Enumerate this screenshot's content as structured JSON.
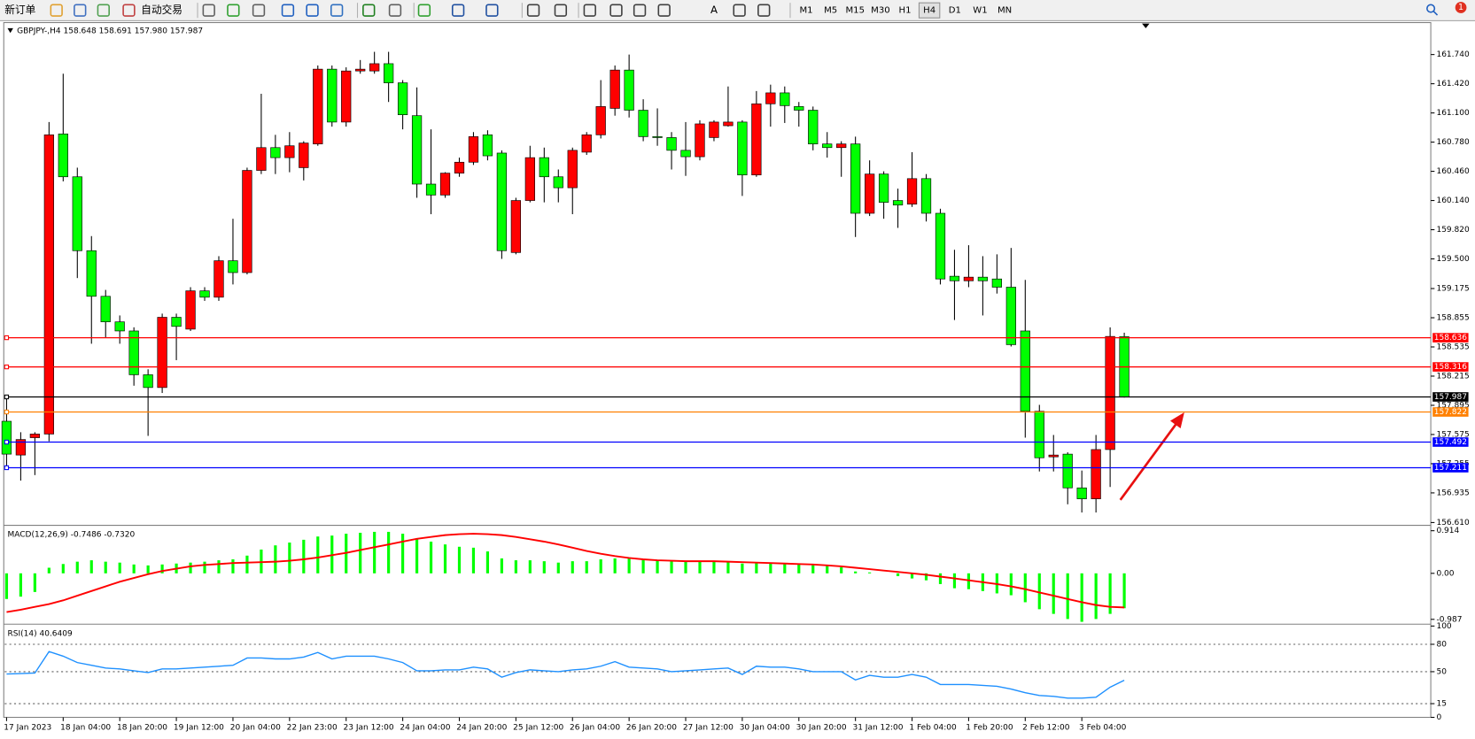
{
  "toolbar": {
    "new_order": "新订单",
    "auto_trading": "自动交易",
    "text_tool": "A",
    "notification_count": "1",
    "timeframes": [
      {
        "label": "M1"
      },
      {
        "label": "M5"
      },
      {
        "label": "M15"
      },
      {
        "label": "M30"
      },
      {
        "label": "H1"
      },
      {
        "label": "H4",
        "active": true
      },
      {
        "label": "D1"
      },
      {
        "label": "W1"
      },
      {
        "label": "MN"
      }
    ]
  },
  "chart_data": [
    {
      "type": "candlestick",
      "title": "GBPJPY-,H4  158.648 158.691 157.980 157.987",
      "up_color": "#ff0000",
      "down_color": "#00ff00",
      "categories": [
        "17 Jan 2023",
        null,
        null,
        null,
        "18 Jan 04:00",
        null,
        null,
        null,
        "18 Jan 20:00",
        null,
        null,
        null,
        "19 Jan 12:00",
        null,
        null,
        null,
        "20 Jan 04:00",
        null,
        null,
        null,
        "22 Jan 23:00",
        null,
        null,
        null,
        "23 Jan 12:00",
        null,
        null,
        null,
        "24 Jan 04:00",
        null,
        null,
        null,
        "24 Jan 20:00",
        null,
        null,
        null,
        "25 Jan 12:00",
        null,
        null,
        null,
        "26 Jan 04:00",
        null,
        null,
        null,
        "26 Jan 20:00",
        null,
        null,
        null,
        "27 Jan 12:00",
        null,
        null,
        null,
        "30 Jan 04:00",
        null,
        null,
        null,
        "30 Jan 20:00",
        null,
        null,
        null,
        "31 Jan 12:00",
        null,
        null,
        null,
        "1 Feb 04:00",
        null,
        null,
        null,
        "1 Feb 20:00",
        null,
        null,
        null,
        "2 Feb 12:00",
        null,
        null,
        null,
        "3 Feb 04:00",
        null,
        null,
        null
      ],
      "open": [
        157.72,
        157.35,
        157.54,
        157.58,
        160.87,
        160.4,
        159.59,
        159.09,
        158.81,
        158.71,
        158.23,
        158.09,
        158.86,
        158.73,
        159.15,
        159.08,
        159.48,
        159.35,
        160.47,
        160.72,
        160.61,
        160.5,
        160.76,
        161.58,
        161.0,
        161.56,
        161.56,
        161.64,
        161.43,
        161.07,
        160.32,
        160.2,
        160.44,
        160.56,
        160.86,
        160.66,
        159.57,
        160.14,
        160.61,
        160.4,
        160.28,
        160.67,
        160.86,
        161.15,
        161.57,
        161.13,
        160.84,
        160.83,
        160.69,
        160.62,
        160.83,
        160.96,
        161.0,
        160.42,
        161.2,
        161.32,
        161.17,
        161.13,
        160.76,
        160.72,
        160.76,
        160.0,
        160.43,
        160.14,
        160.1,
        160.38,
        160.0,
        159.31,
        159.26,
        159.3,
        159.28,
        159.19,
        158.71,
        157.83,
        157.33,
        157.36,
        156.99,
        156.87,
        157.41,
        158.648
      ],
      "high": [
        158,
        157.6,
        157.6,
        161.0,
        161.53,
        160.5,
        159.75,
        159.16,
        158.88,
        158.75,
        158.29,
        158.9,
        158.9,
        159.19,
        159.19,
        159.53,
        159.94,
        160.5,
        161.31,
        160.86,
        160.89,
        160.79,
        161.62,
        161.62,
        161.6,
        161.68,
        161.77,
        161.77,
        161.46,
        161.38,
        160.92,
        160.45,
        160.61,
        160.89,
        160.91,
        160.69,
        160.17,
        160.74,
        160.72,
        160.48,
        160.72,
        160.89,
        161.46,
        161.62,
        161.74,
        161.25,
        161.15,
        160.89,
        161.0,
        161.02,
        161.02,
        161.39,
        161.02,
        161.34,
        161.41,
        161.39,
        161.22,
        161.17,
        160.89,
        160.79,
        160.84,
        160.58,
        160.46,
        160.27,
        160.67,
        160.43,
        160.05,
        159.6,
        159.65,
        159.53,
        159.55,
        159.62,
        159.27,
        157.9,
        157.57,
        157.38,
        157.18,
        157.57,
        158.75,
        158.691
      ],
      "low": [
        157.2,
        157.07,
        157.13,
        157.5,
        160.35,
        159.29,
        158.57,
        158.64,
        158.57,
        158.11,
        157.56,
        158.03,
        158.39,
        158.71,
        159.04,
        159.04,
        159.22,
        159.33,
        160.43,
        160.43,
        160.45,
        160.36,
        160.74,
        160.95,
        160.95,
        161.53,
        161.53,
        161.22,
        160.92,
        160.17,
        159.99,
        160.17,
        160.4,
        160.53,
        160.58,
        159.5,
        159.55,
        160.12,
        160.12,
        160.12,
        159.99,
        160.64,
        160.82,
        161.07,
        161.05,
        160.79,
        160.74,
        160.48,
        160.41,
        160.58,
        160.79,
        160.95,
        160.19,
        160.4,
        160.95,
        160.99,
        160.95,
        160.69,
        160.61,
        160.4,
        159.74,
        159.97,
        159.94,
        159.84,
        160.07,
        159.91,
        159.22,
        158.83,
        159.19,
        158.88,
        159.12,
        158.54,
        157.54,
        157.17,
        157.17,
        156.81,
        156.72,
        156.72,
        157.0,
        157.98
      ],
      "close": [
        157.36,
        157.52,
        157.58,
        160.86,
        160.4,
        159.59,
        159.09,
        158.81,
        158.71,
        158.23,
        158.09,
        158.86,
        158.76,
        159.15,
        159.08,
        159.48,
        159.35,
        160.47,
        160.72,
        160.61,
        160.74,
        160.77,
        161.58,
        161.0,
        161.56,
        161.58,
        161.64,
        161.43,
        161.08,
        160.32,
        160.2,
        160.44,
        160.56,
        160.84,
        160.63,
        159.59,
        160.14,
        160.61,
        160.4,
        160.28,
        160.69,
        160.86,
        161.17,
        161.57,
        161.13,
        160.84,
        160.83,
        160.69,
        160.62,
        160.98,
        161.0,
        161.0,
        160.42,
        161.2,
        161.32,
        161.18,
        161.13,
        160.76,
        160.72,
        160.76,
        160.0,
        160.43,
        160.12,
        160.09,
        160.38,
        160.0,
        159.28,
        159.26,
        159.3,
        159.26,
        159.19,
        158.56,
        157.83,
        157.32,
        157.35,
        156.99,
        156.87,
        157.41,
        158.65,
        157.987
      ],
      "ylim": [
        156.59,
        162.08
      ],
      "yticks": [
        {
          "value": 161.74,
          "label": "161.740"
        },
        {
          "value": 161.42,
          "label": "161.420"
        },
        {
          "value": 161.1,
          "label": "161.100"
        },
        {
          "value": 160.78,
          "label": "160.780"
        },
        {
          "value": 160.46,
          "label": "160.460"
        },
        {
          "value": 160.14,
          "label": "160.140"
        },
        {
          "value": 159.82,
          "label": "159.820"
        },
        {
          "value": 159.5,
          "label": "159.500"
        },
        159.175,
        158.855,
        158.535,
        158.215,
        157.895,
        157.575,
        157.255,
        156.935,
        {
          "value": 156.61,
          "label": "156.610"
        }
      ],
      "hlines": [
        {
          "value": 158.636,
          "color": "#ff0000"
        },
        {
          "value": 158.316,
          "color": "#ff0000"
        },
        {
          "value": 157.987,
          "color": "#000000"
        },
        {
          "value": 157.822,
          "color": "#ff8000"
        },
        {
          "value": 157.492,
          "color": "#0000ff"
        },
        {
          "value": 157.211,
          "color": "#0000ff"
        }
      ]
    },
    {
      "type": "bar",
      "title": "MACD(12,26,9) -0.7486 -0.7320",
      "ylim": [
        -1.07,
        0.99
      ],
      "yticks": [
        0.914,
        {
          "value": 0,
          "label": "0.00"
        },
        -0.987
      ],
      "series": [
        {
          "color": "#00ff00",
          "values": [
            -0.55,
            -0.5,
            -0.4,
            0.12,
            0.2,
            0.25,
            0.28,
            0.25,
            0.23,
            0.19,
            0.17,
            0.19,
            0.21,
            0.23,
            0.25,
            0.28,
            0.3,
            0.38,
            0.51,
            0.6,
            0.66,
            0.72,
            0.79,
            0.81,
            0.85,
            0.87,
            0.89,
            0.89,
            0.85,
            0.74,
            0.68,
            0.62,
            0.57,
            0.55,
            0.47,
            0.32,
            0.28,
            0.28,
            0.26,
            0.23,
            0.26,
            0.26,
            0.3,
            0.32,
            0.32,
            0.3,
            0.28,
            0.26,
            0.26,
            0.26,
            0.26,
            0.26,
            0.21,
            0.23,
            0.21,
            0.21,
            0.19,
            0.19,
            0.17,
            0.13,
            0.04,
            0.02,
            0,
            -0.06,
            -0.11,
            -0.15,
            -0.23,
            -0.32,
            -0.34,
            -0.38,
            -0.43,
            -0.47,
            -0.62,
            -0.77,
            -0.87,
            -0.98,
            -1.04,
            -0.98,
            -0.87,
            -0.7486
          ]
        },
        {
          "type": "line",
          "color": "#ff0000",
          "values": [
            -0.83,
            -0.78,
            -0.72,
            -0.66,
            -0.58,
            -0.48,
            -0.38,
            -0.28,
            -0.18,
            -0.1,
            -0.02,
            0.05,
            0.1,
            0.15,
            0.18,
            0.2,
            0.22,
            0.23,
            0.24,
            0.25,
            0.27,
            0.3,
            0.34,
            0.39,
            0.44,
            0.5,
            0.56,
            0.62,
            0.68,
            0.74,
            0.78,
            0.82,
            0.84,
            0.85,
            0.84,
            0.82,
            0.78,
            0.73,
            0.68,
            0.62,
            0.55,
            0.48,
            0.42,
            0.37,
            0.33,
            0.3,
            0.28,
            0.27,
            0.26,
            0.26,
            0.26,
            0.25,
            0.24,
            0.23,
            0.22,
            0.21,
            0.2,
            0.19,
            0.17,
            0.15,
            0.12,
            0.09,
            0.06,
            0.03,
            0,
            -0.03,
            -0.07,
            -0.11,
            -0.15,
            -0.19,
            -0.23,
            -0.28,
            -0.34,
            -0.41,
            -0.48,
            -0.55,
            -0.62,
            -0.68,
            -0.72,
            -0.732
          ]
        }
      ]
    },
    {
      "type": "line",
      "title": "RSI(14) 40.6409",
      "ylim": [
        0,
        100
      ],
      "yticks": [
        100,
        80,
        50,
        15,
        0
      ],
      "grid": "dotted",
      "series": [
        {
          "color": "#1e90ff",
          "values": [
            47.5,
            48,
            48.5,
            72,
            67,
            60,
            57,
            54,
            53,
            51,
            49,
            53,
            53,
            54,
            55,
            56,
            57,
            65,
            65,
            64,
            64,
            66,
            71,
            64,
            67,
            67,
            67,
            64,
            60,
            51,
            51,
            52,
            52,
            55,
            53,
            44,
            49,
            52,
            51,
            50,
            52,
            53,
            56,
            61,
            55,
            54,
            53,
            50,
            51,
            52,
            53,
            54,
            47,
            56,
            55,
            55,
            53,
            50,
            50,
            50,
            41,
            46,
            44,
            44,
            47,
            44,
            36,
            36,
            36,
            35,
            34,
            31,
            27,
            24,
            23,
            21,
            21,
            22,
            33,
            40.6409
          ]
        }
      ]
    }
  ]
}
